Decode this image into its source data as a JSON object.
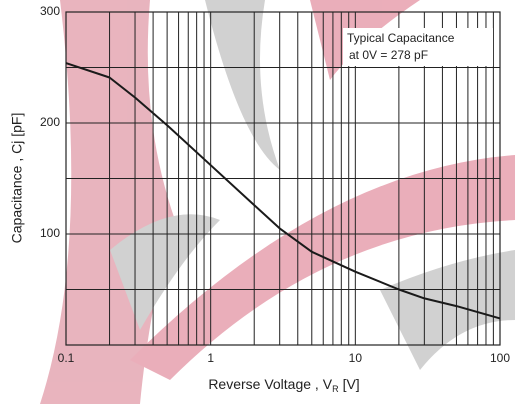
{
  "chart_data": {
    "type": "line",
    "x_label": {
      "text": "Reverse Voltage , V",
      "subscript": "R",
      "suffix": "[V]"
    },
    "y_label": "Capacitance , Cj [pF]",
    "annotation": [
      "Typical Capacitance",
      "at  0V = 278 pF"
    ],
    "x": [
      0.1,
      0.2,
      0.3,
      0.5,
      1,
      2,
      3,
      5,
      10,
      20,
      30,
      50,
      100
    ],
    "values": [
      254,
      241,
      223,
      198,
      162,
      126,
      105,
      84,
      66,
      50,
      42,
      35,
      24
    ],
    "color": "#1a1a1a",
    "x_log": true,
    "xlim": [
      0.1,
      100
    ],
    "xticks": [
      0.1,
      1,
      10,
      100
    ],
    "x_minor_ticks": [
      0.2,
      0.3,
      0.4,
      0.5,
      0.6,
      0.7,
      0.8,
      0.9,
      2,
      3,
      4,
      5,
      6,
      7,
      8,
      9,
      20,
      30,
      40,
      50,
      60,
      70,
      80,
      90
    ],
    "ylim": [
      0,
      300
    ],
    "yticks": [
      100,
      200,
      300
    ],
    "y_minor_ticks": [
      50,
      150,
      250
    ],
    "grid": true
  }
}
